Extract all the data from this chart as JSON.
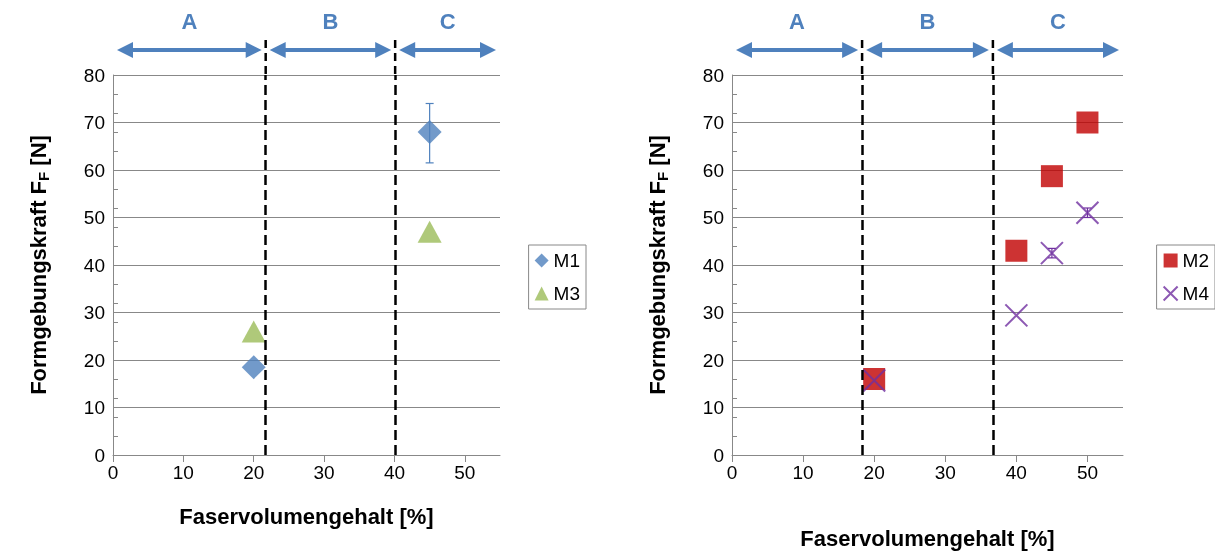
{
  "chart_data": [
    {
      "type": "scatter",
      "xlabel": "Faservolumengehalt [%]",
      "ylabel": "Formgebungskraft F$_{F}$ [N]",
      "xlim": [
        0,
        55
      ],
      "xticks": [
        0,
        10,
        20,
        30,
        40,
        50
      ],
      "ylim": [
        0,
        80
      ],
      "yticks": [
        0,
        10,
        20,
        30,
        40,
        50,
        60,
        70,
        80
      ],
      "grid": "y",
      "legend": "right",
      "x": [
        20,
        45
      ],
      "series": [
        {
          "name": "M1",
          "color": "#4f81bd",
          "marker": "diamond",
          "values": [
            18.5,
            68
          ],
          "errors": [
            null,
            [
              61.5,
              74
            ]
          ]
        },
        {
          "name": "M3",
          "color": "#9bbb59",
          "marker": "triangle",
          "values": [
            26,
            47
          ]
        }
      ],
      "ref_lines": [
        {
          "axis": "x",
          "value": 21.7,
          "color": "#000000",
          "line_style": "dashed"
        },
        {
          "axis": "x",
          "value": 40.1,
          "color": "#000000",
          "line_style": "dashed"
        }
      ],
      "annotations": [
        "A",
        "B",
        "C"
      ]
    },
    {
      "type": "scatter",
      "xlabel": "Faservolumengehalt [%]",
      "ylabel": "Formgebungskraft F$_{F}$ [N]",
      "xlim": [
        0,
        55
      ],
      "xticks": [
        0,
        10,
        20,
        30,
        40,
        50
      ],
      "ylim": [
        0,
        80
      ],
      "yticks": [
        0,
        10,
        20,
        30,
        40,
        50,
        60,
        70,
        80
      ],
      "grid": "y",
      "legend": "right",
      "x": [
        20,
        40,
        45,
        50
      ],
      "series": [
        {
          "name": "M2",
          "color": "#c00000",
          "marker": "square",
          "values": [
            16,
            43,
            58.7,
            70
          ]
        },
        {
          "name": "M4",
          "color": "#7030a0",
          "marker": "cross",
          "values": [
            15.7,
            29.4,
            42.5,
            51
          ],
          "errors": [
            null,
            null,
            1,
            1
          ]
        }
      ],
      "ref_lines": [
        {
          "axis": "x",
          "value": 18.3,
          "color": "#000000",
          "line_style": "dashed"
        },
        {
          "axis": "x",
          "value": 36.7,
          "color": "#000000",
          "line_style": "dashed"
        }
      ],
      "annotations": [
        "A",
        "B",
        "C"
      ]
    }
  ]
}
